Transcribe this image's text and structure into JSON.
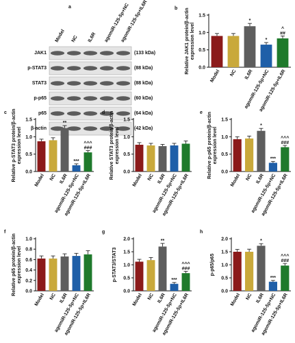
{
  "blot": {
    "panel": "a",
    "columns": [
      "Model",
      "NC",
      "IL6R",
      "agomiR-125-5p+NC",
      "agomiR-125-5p+IL6R"
    ],
    "rows": [
      {
        "name": "JAK1",
        "size": "(133 kDa)"
      },
      {
        "name": "p-STAT3",
        "size": "(88 kDa)"
      },
      {
        "name": "STAT3",
        "size": "(88 kDa)"
      },
      {
        "name": "p-p65",
        "size": "(60 kDa)"
      },
      {
        "name": "p65",
        "size": "(64 kDa)"
      },
      {
        "name": "β-actin",
        "size": "(42 kDa)"
      }
    ]
  },
  "chart_data": [
    {
      "type": "bar",
      "panel": "b",
      "ylabel": [
        "Relative JAK1 protein/β-actin",
        "expression level"
      ],
      "categories": [
        "Model",
        "NC",
        "IL6R",
        "agomiR-125-5p+NC",
        "agomiR-125-5p+IL6R"
      ],
      "values": [
        0.9,
        0.9,
        1.18,
        0.65,
        0.83
      ],
      "errors": [
        0.07,
        0.07,
        0.08,
        0.06,
        0.07
      ],
      "colors": [
        "#8b1a1a",
        "#c9a93b",
        "#5e5e5e",
        "#1f5fa8",
        "#1f7a2c"
      ],
      "annotations": [
        null,
        null,
        [
          "*"
        ],
        [
          "*"
        ],
        [
          "^",
          "##"
        ]
      ],
      "ylim": [
        0,
        1.5
      ],
      "yticks": [
        {
          "value": 0,
          "label": "0.0"
        },
        0.5,
        {
          "value": 1,
          "label": "1.0"
        },
        1.5
      ]
    },
    {
      "type": "bar",
      "panel": "c",
      "ylabel": [
        "Relative p-STAT3 protein/β-actin",
        "expression level"
      ],
      "categories": [
        "Model",
        "NC",
        "IL6R",
        "agomiR-125-5p+NC",
        "agomiR-125-5p+IL6R"
      ],
      "values": [
        0.87,
        0.9,
        1.25,
        0.18,
        0.55
      ],
      "errors": [
        0.06,
        0.07,
        0.07,
        0.04,
        0.05
      ],
      "colors": [
        "#8b1a1a",
        "#c9a93b",
        "#5e5e5e",
        "#1f5fa8",
        "#1f7a2c"
      ],
      "annotations": [
        null,
        null,
        [
          "**"
        ],
        [
          "***"
        ],
        [
          "^^^",
          "###"
        ]
      ],
      "ylim": [
        0,
        1.5
      ],
      "yticks": [
        {
          "value": 0,
          "label": "0.0"
        },
        0.5,
        {
          "value": 1,
          "label": "1.0"
        },
        1.5
      ]
    },
    {
      "type": "bar",
      "panel": "d",
      "ylabel": [
        "Relative STAT3 protein/β-actin",
        "expression level"
      ],
      "categories": [
        "Model",
        "NC",
        "IL6R",
        "agomiR-125-5p+NC",
        "agomiR-125-5p+IL6R"
      ],
      "values": [
        0.77,
        0.75,
        0.73,
        0.75,
        0.8
      ],
      "errors": [
        0.06,
        0.06,
        0.05,
        0.06,
        0.08
      ],
      "colors": [
        "#8b1a1a",
        "#c9a93b",
        "#5e5e5e",
        "#1f5fa8",
        "#1f7a2c"
      ],
      "annotations": [
        null,
        null,
        null,
        null,
        null
      ],
      "ylim": [
        0,
        1.5
      ],
      "yticks": [
        {
          "value": 0,
          "label": "0.0"
        },
        0.5,
        {
          "value": 1,
          "label": "1.0"
        },
        1.5
      ]
    },
    {
      "type": "bar",
      "panel": "e",
      "ylabel": [
        "Relative p-p65 protein/β-actin",
        "expression level"
      ],
      "categories": [
        "Model",
        "NC",
        "IL6R",
        "agomiR-125-5p+NC",
        "agomiR-125-5p+IL6R"
      ],
      "values": [
        0.93,
        0.95,
        1.17,
        0.25,
        0.7
      ],
      "errors": [
        0.07,
        0.07,
        0.07,
        0.04,
        0.05
      ],
      "colors": [
        "#8b1a1a",
        "#c9a93b",
        "#5e5e5e",
        "#1f5fa8",
        "#1f7a2c"
      ],
      "annotations": [
        null,
        null,
        [
          "*"
        ],
        [
          "***"
        ],
        [
          "^^^",
          "###"
        ]
      ],
      "ylim": [
        0,
        1.5
      ],
      "yticks": [
        {
          "value": 0,
          "label": "0.0"
        },
        0.5,
        {
          "value": 1,
          "label": "1.0"
        },
        1.5
      ]
    },
    {
      "type": "bar",
      "panel": "f",
      "ylabel": [
        "Relative p65 protein/β-actin",
        "expression level"
      ],
      "categories": [
        "Model",
        "NC",
        "IL6R",
        "agomiR-125-5p+NC",
        "agomiR-125-5p+IL6R"
      ],
      "values": [
        0.62,
        0.62,
        0.66,
        0.67,
        0.7
      ],
      "errors": [
        0.05,
        0.05,
        0.05,
        0.05,
        0.07
      ],
      "colors": [
        "#8b1a1a",
        "#c9a93b",
        "#5e5e5e",
        "#1f5fa8",
        "#1f7a2c"
      ],
      "annotations": [
        null,
        null,
        null,
        null,
        null
      ],
      "ylim": [
        0,
        1
      ],
      "yticks": [
        {
          "value": 0,
          "label": "0.0"
        },
        0.2,
        0.4,
        0.6,
        0.8,
        {
          "value": 1,
          "label": "1.0"
        }
      ]
    },
    {
      "type": "bar",
      "panel": "g",
      "ylabel": [
        "p-STAT3/STAT3"
      ],
      "categories": [
        "Model",
        "NC",
        "IL6R",
        "agomiR-125-5p+NC",
        "agomiR-125-5p+IL6R"
      ],
      "values": [
        1.12,
        1.18,
        1.7,
        0.27,
        0.68
      ],
      "errors": [
        0.09,
        0.1,
        0.12,
        0.05,
        0.07
      ],
      "colors": [
        "#8b1a1a",
        "#c9a93b",
        "#5e5e5e",
        "#1f5fa8",
        "#1f7a2c"
      ],
      "annotations": [
        null,
        null,
        [
          "**"
        ],
        [
          "***"
        ],
        [
          "^^^",
          "###"
        ]
      ],
      "ylim": [
        0,
        2
      ],
      "yticks": [
        {
          "value": 0,
          "label": "0.0"
        },
        0.5,
        {
          "value": 1,
          "label": "1.0"
        },
        1.5,
        {
          "value": 2,
          "label": "2.0"
        }
      ]
    },
    {
      "type": "bar",
      "panel": "h",
      "ylabel": [
        "p-p65/p65"
      ],
      "categories": [
        "Model",
        "NC",
        "IL6R",
        "agomiR-125-5p+NC",
        "agomiR-125-5p+IL6R"
      ],
      "values": [
        1.5,
        1.5,
        1.73,
        0.35,
        0.97
      ],
      "errors": [
        0.09,
        0.1,
        0.08,
        0.05,
        0.08
      ],
      "colors": [
        "#8b1a1a",
        "#c9a93b",
        "#5e5e5e",
        "#1f5fa8",
        "#1f7a2c"
      ],
      "annotations": [
        null,
        null,
        [
          "*"
        ],
        [
          "***"
        ],
        [
          "^^^",
          "###"
        ]
      ],
      "ylim": [
        0,
        2
      ],
      "yticks": [
        {
          "value": 0,
          "label": "0.0"
        },
        0.5,
        {
          "value": 1,
          "label": "1.0"
        },
        1.5,
        {
          "value": 2,
          "label": "2.0"
        }
      ]
    }
  ]
}
